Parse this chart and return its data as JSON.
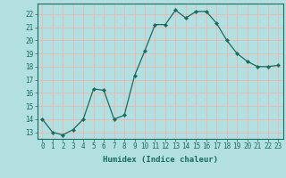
{
  "x": [
    0,
    1,
    2,
    3,
    4,
    5,
    6,
    7,
    8,
    9,
    10,
    11,
    12,
    13,
    14,
    15,
    16,
    17,
    18,
    19,
    20,
    21,
    22,
    23
  ],
  "y": [
    14,
    13,
    12.8,
    13.2,
    14,
    16.3,
    16.2,
    14,
    14.3,
    17.3,
    19.2,
    21.2,
    21.2,
    22.3,
    21.7,
    22.2,
    22.2,
    21.3,
    20.0,
    19.0,
    18.4,
    18.0,
    18.0,
    18.1
  ],
  "line_color": "#1a6b5e",
  "marker": "D",
  "marker_size": 2.2,
  "bg_color": "#b2e0e0",
  "grid_color": "#e8b8b8",
  "xlabel": "Humidex (Indice chaleur)",
  "xlim": [
    -0.5,
    23.5
  ],
  "ylim": [
    12.5,
    22.8
  ],
  "yticks": [
    13,
    14,
    15,
    16,
    17,
    18,
    19,
    20,
    21,
    22
  ],
  "xticks": [
    0,
    1,
    2,
    3,
    4,
    5,
    6,
    7,
    8,
    9,
    10,
    11,
    12,
    13,
    14,
    15,
    16,
    17,
    18,
    19,
    20,
    21,
    22,
    23
  ],
  "tick_fontsize": 5.5,
  "xlabel_fontsize": 6.5
}
